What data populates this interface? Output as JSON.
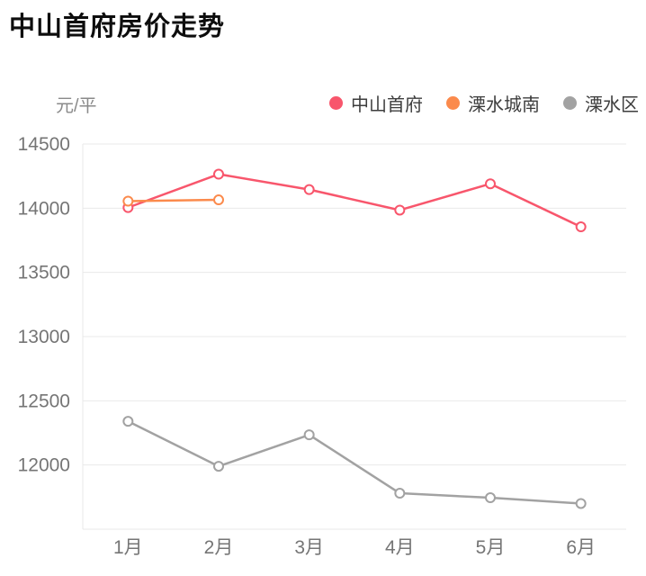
{
  "title": "中山首府房价走势",
  "y_unit_label": "元/平",
  "legend": [
    {
      "label": "中山首府",
      "color": "#f8566c"
    },
    {
      "label": "溧水城南",
      "color": "#fb8a4c"
    },
    {
      "label": "溧水区",
      "color": "#a2a2a2"
    }
  ],
  "chart_data": {
    "type": "line",
    "title": "中山首府房价走势",
    "ylabel": "元/平",
    "xlabel": "",
    "categories": [
      "1月",
      "2月",
      "3月",
      "4月",
      "5月",
      "6月"
    ],
    "series": [
      {
        "name": "中山首府",
        "color": "#f8566c",
        "values": [
          14005,
          14265,
          14145,
          13985,
          14190,
          13855
        ]
      },
      {
        "name": "溧水城南",
        "color": "#fb8a4c",
        "values": [
          14055,
          14065,
          null,
          null,
          null,
          null
        ]
      },
      {
        "name": "溧水区",
        "color": "#a2a2a2",
        "values": [
          12340,
          11990,
          12235,
          11780,
          11745,
          11700
        ]
      }
    ],
    "ylim": [
      11500,
      14500
    ],
    "ytick_step": 500,
    "ytick_labels": [
      "14500",
      "14000",
      "13500",
      "13000",
      "12500",
      "12000"
    ],
    "grid": true,
    "legend_position": "top",
    "colors": {
      "grid_line": "#e9e9e9",
      "axis_line": "#e9e9e9",
      "tick_text": "#757575",
      "marker_fill": "#ffffff"
    }
  }
}
